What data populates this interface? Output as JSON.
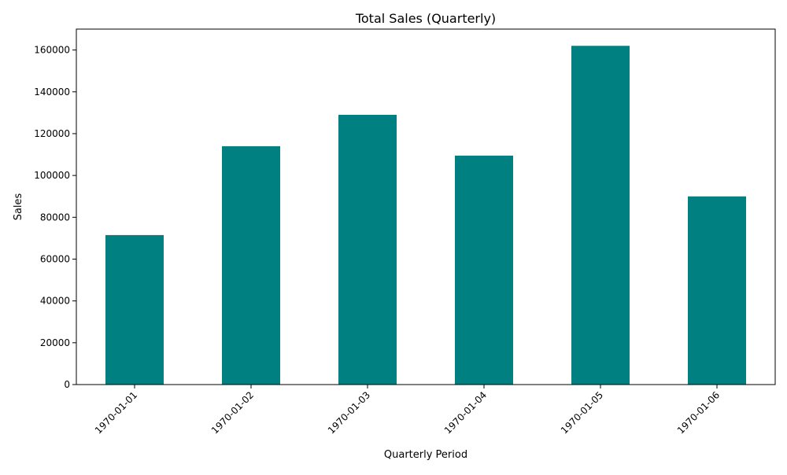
{
  "colors": {
    "bar": "#008080",
    "axis": "#000000",
    "background": "#ffffff"
  },
  "chart_data": {
    "type": "bar",
    "title": "Total Sales (Quarterly)",
    "xlabel": "Quarterly Period",
    "ylabel": "Sales",
    "categories": [
      "1970-01-01",
      "1970-01-02",
      "1970-01-03",
      "1970-01-04",
      "1970-01-05",
      "1970-01-06"
    ],
    "values": [
      71500,
      114000,
      129000,
      109500,
      162000,
      90000
    ],
    "ylim": [
      0,
      170000
    ],
    "yticks": [
      0,
      20000,
      40000,
      60000,
      80000,
      100000,
      120000,
      140000,
      160000
    ],
    "xtick_rotation_deg": 45,
    "grid": false,
    "legend": "none"
  }
}
